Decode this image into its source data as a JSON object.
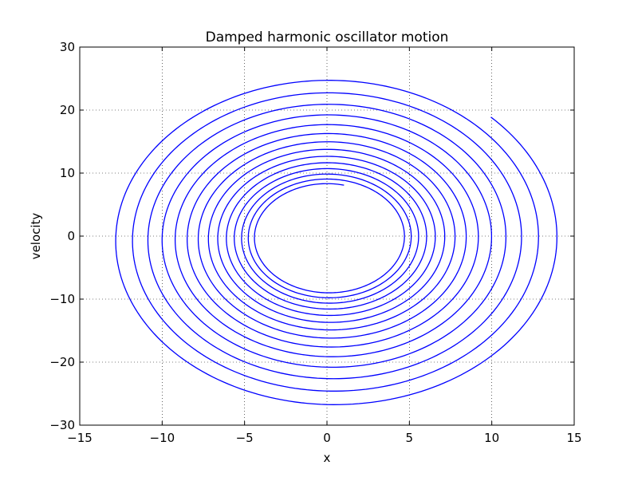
{
  "chart_data": {
    "type": "line",
    "title": "Damped harmonic oscillator motion",
    "xlabel": "x",
    "ylabel": "velocity",
    "xlim": [
      -15,
      15
    ],
    "ylim": [
      -30,
      30
    ],
    "xticks": [
      -15,
      -10,
      -5,
      0,
      5,
      10,
      15
    ],
    "xtick_labels": [
      "−15",
      "−10",
      "−5",
      "0",
      "5",
      "10",
      "15"
    ],
    "yticks": [
      -30,
      -20,
      -10,
      0,
      10,
      20,
      30
    ],
    "ytick_labels": [
      "−30",
      "−20",
      "−10",
      "0",
      "10",
      "20",
      "30"
    ],
    "grid": true,
    "grid_style": "dotted",
    "line_color": "#0000ff",
    "spiral": {
      "start": {
        "x": 10.2,
        "v": 19.4
      },
      "end": {
        "x": 1.0,
        "v": 7.8
      },
      "outer_extents": {
        "x_max": 14.1,
        "x_min": -13.5,
        "v_max": 26.6,
        "v_min": -27.6
      },
      "inner_extents": {
        "x_max": 4.4,
        "x_min": -4.3,
        "v_max": 8.3,
        "v_min": -8.6
      },
      "turns": 14,
      "damping_ratio_per_turn": 0.92
    }
  }
}
